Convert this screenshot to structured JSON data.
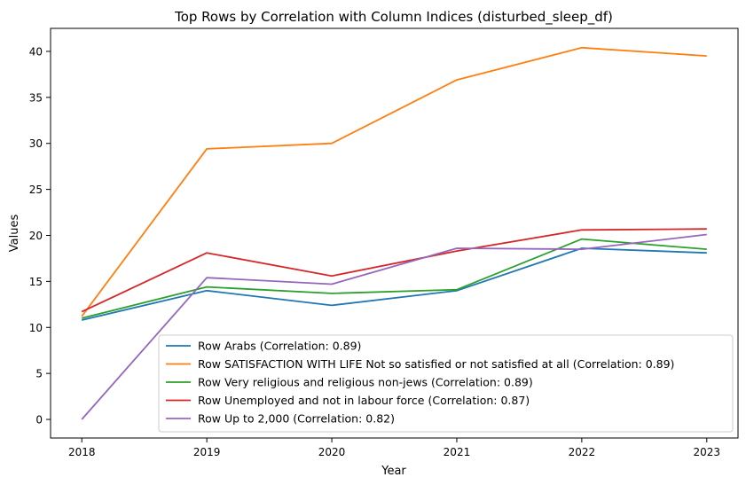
{
  "chart_data": {
    "type": "line",
    "title": "Top Rows by Correlation with Column Indices (disturbed_sleep_df)",
    "xlabel": "Year",
    "ylabel": "Values",
    "x": [
      "2018",
      "2019",
      "2020",
      "2021",
      "2022",
      "2023"
    ],
    "xlim": [
      2017.75,
      2023.25
    ],
    "ylim": [
      -2.02,
      42.5
    ],
    "yticks": [
      0,
      5,
      10,
      15,
      20,
      25,
      30,
      35,
      40
    ],
    "grid": false,
    "legend_position": "lower-right",
    "series": [
      {
        "name": "Row Arabs (Correlation: 0.89)",
        "color": "#1f77b4",
        "values": [
          10.8,
          14.0,
          12.4,
          14.0,
          18.6,
          18.1
        ]
      },
      {
        "name": "Row SATISFACTION WITH LIFE Not so satisfied or not satisfied at all (Correlation: 0.89)",
        "color": "#ff7f0e",
        "values": [
          11.2,
          29.4,
          30.0,
          36.9,
          40.4,
          39.5
        ]
      },
      {
        "name": "Row Very religious and religious non-jews (Correlation: 0.89)",
        "color": "#2ca02c",
        "values": [
          11.0,
          14.4,
          13.7,
          14.1,
          19.6,
          18.5
        ]
      },
      {
        "name": "Row Unemployed and not in labour force (Correlation: 0.87)",
        "color": "#d62728",
        "values": [
          11.7,
          18.1,
          15.6,
          18.3,
          20.6,
          20.7
        ]
      },
      {
        "name": "Row Up to 2,000 (Correlation: 0.82)",
        "color": "#9467bd",
        "values": [
          0.0,
          15.4,
          14.7,
          18.6,
          18.5,
          20.1
        ]
      }
    ]
  }
}
